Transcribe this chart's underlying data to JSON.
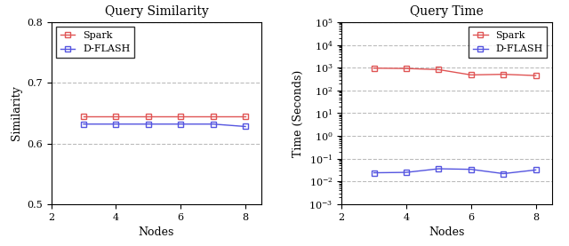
{
  "nodes": [
    3,
    4,
    5,
    6,
    7,
    8
  ],
  "sim_spark": [
    0.645,
    0.645,
    0.645,
    0.645,
    0.645,
    0.645
  ],
  "sim_dflash": [
    0.632,
    0.632,
    0.632,
    0.632,
    0.632,
    0.628
  ],
  "time_spark": [
    950,
    920,
    820,
    480,
    510,
    450
  ],
  "time_dflash": [
    0.024,
    0.025,
    0.036,
    0.034,
    0.022,
    0.032
  ],
  "spark_color": "#e05555",
  "dflash_color": "#5555e0",
  "title_sim": "Query Similarity",
  "title_time": "Query Time",
  "xlabel": "Nodes",
  "ylabel_sim": "Similarity",
  "ylabel_time": "Time (Seconds)",
  "sim_ylim": [
    0.5,
    0.8
  ],
  "sim_yticks": [
    0.5,
    0.6,
    0.7,
    0.8
  ],
  "xlim": [
    2,
    8.5
  ],
  "xticks": [
    2,
    4,
    6,
    8
  ],
  "background_color": "#ffffff",
  "grid_color": "#bbbbbb",
  "font_family": "serif",
  "title_fontsize": 10,
  "label_fontsize": 9,
  "tick_fontsize": 8,
  "legend_fontsize": 8,
  "linewidth": 1.0,
  "markersize": 4
}
